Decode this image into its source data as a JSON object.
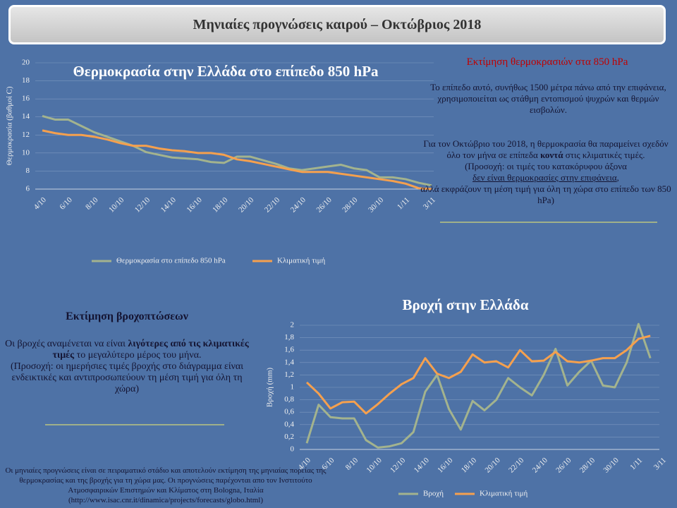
{
  "header": {
    "title": "Μηνιαίες προγνώσεις καιρού – Οκτώβριος 2018"
  },
  "chart_data": [
    {
      "type": "line",
      "title": "Θερμοκρασία στην Ελλάδα στο επίπεδο 850 hPa",
      "y_label": "Θερμοκρασία  (βαθμοί  C)",
      "categories": [
        "4/10",
        null,
        "6/10",
        null,
        "8/10",
        null,
        "10/10",
        null,
        "12/10",
        null,
        "14/10",
        null,
        "16/10",
        null,
        "18/10",
        null,
        "20/10",
        null,
        "22/10",
        null,
        "24/10",
        null,
        "26/10",
        null,
        "28/10",
        null,
        "30/10",
        null,
        "1/11",
        null,
        "3/11"
      ],
      "series": [
        {
          "name": "Θερμοκρασία  στο επίπεδο 850 hPa",
          "color": "#a3b38e",
          "values": [
            14.1,
            13.7,
            13.7,
            13.0,
            12.3,
            11.8,
            11.3,
            10.8,
            10.1,
            9.8,
            9.5,
            9.4,
            9.3,
            9.0,
            8.9,
            9.6,
            9.6,
            9.2,
            8.8,
            8.3,
            8.1,
            8.3,
            8.5,
            8.7,
            8.3,
            8.1,
            7.3,
            7.3,
            7.1,
            6.7,
            6.4
          ]
        },
        {
          "name": "Κλιματική τιμή",
          "color": "#f5a04e",
          "values": [
            12.5,
            12.2,
            12.0,
            12.0,
            11.8,
            11.5,
            11.1,
            10.8,
            10.8,
            10.5,
            10.3,
            10.2,
            10.0,
            10.0,
            9.8,
            9.3,
            9.1,
            8.8,
            8.5,
            8.2,
            7.9,
            7.9,
            7.9,
            7.7,
            7.5,
            7.3,
            7.1,
            6.9,
            6.6,
            6.1,
            6.0
          ]
        }
      ],
      "ylim": [
        6,
        20
      ],
      "yticks": [
        6,
        8,
        10,
        12,
        14,
        16,
        18,
        20
      ],
      "grid": true,
      "legend": "bottom"
    },
    {
      "type": "line",
      "title": "Βροχή στην Ελλάδα",
      "y_label": "Βροχή  (mm)",
      "categories": [
        "4/10",
        null,
        "6/10",
        null,
        "8/10",
        null,
        "10/10",
        null,
        "12/10",
        null,
        "14/10",
        null,
        "16/10",
        null,
        "18/10",
        null,
        "20/10",
        null,
        "22/10",
        null,
        "24/10",
        null,
        "26/10",
        null,
        "28/10",
        null,
        "30/10",
        null,
        "1/11",
        null,
        "3/11"
      ],
      "series": [
        {
          "name": "Βροχή",
          "color": "#a3b38e",
          "values": [
            0.1,
            0.72,
            0.52,
            0.5,
            0.5,
            0.15,
            0.03,
            0.05,
            0.1,
            0.28,
            0.93,
            1.2,
            0.65,
            0.32,
            0.78,
            0.63,
            0.8,
            1.15,
            1.0,
            0.87,
            1.2,
            1.62,
            1.03,
            1.25,
            1.43,
            1.03,
            1.0,
            1.4,
            2.02,
            1.47,
            null
          ]
        },
        {
          "name": "Κλιματική  τιμή",
          "color": "#f5a04e",
          "values": [
            1.08,
            0.9,
            0.66,
            0.76,
            0.77,
            0.58,
            0.73,
            0.9,
            1.05,
            1.15,
            1.47,
            1.22,
            1.15,
            1.25,
            1.53,
            1.4,
            1.42,
            1.32,
            1.6,
            1.42,
            1.43,
            1.57,
            1.42,
            1.4,
            1.43,
            1.47,
            1.47,
            1.6,
            1.78,
            1.83,
            null
          ]
        }
      ],
      "ylim": [
        0,
        2
      ],
      "yticks": [
        0,
        {
          "value": 0.2,
          "label": "0,2"
        },
        {
          "value": 0.4,
          "label": "0,4"
        },
        {
          "value": 0.6,
          "label": "0,6"
        },
        {
          "value": 0.8,
          "label": "0,8"
        },
        1,
        {
          "value": 1.2,
          "label": "1,2"
        },
        {
          "value": 1.4,
          "label": "1,4"
        },
        {
          "value": 1.6,
          "label": "1,6"
        },
        {
          "value": 1.8,
          "label": "1,8"
        },
        2
      ],
      "grid": true,
      "legend": "bottom"
    }
  ],
  "temp_text": {
    "title": "Εκτίμηση θερμοκρασιών στα 850 hPa",
    "p1": "Το επίπεδο αυτό, συνήθως 1500 μέτρα πάνω από την επιφάνεια, χρησιμοποιείται ως στάθμη  εντοπισμού ψυχρών και θερμών εισβολών.",
    "p2": [
      "Για τον Οκτώβριο του 2018, η θερμοκρασία θα παραμείνει σχεδόν όλο τον μήνα σε επίπεδα ",
      "κοντά",
      " στις κλιματικές τιμές.",
      "(Προσοχή: οι τιμές του  κατακόρυφου άξονα",
      "δεν είναι θερμοκρασίες στην επιφάνεια",
      ",",
      "αλλά εκφράζουν τη μέση τιμή για όλη τη χώρα στο επίπεδο των 850 hPa)"
    ]
  },
  "rain_text": {
    "title": "Εκτίμηση βροχοπτώσεων",
    "p1": [
      "Οι βροχές αναμένεται να είναι ",
      "λιγότερες από τις κλιματικές τιμές",
      " το μεγαλύτερο μέρος του μήνα.",
      "(Προσοχή: οι ημερήσιες τιμές βροχής στο διάγραμμα είναι ενδεικτικές και αντιπροσωπεύουν τη μέση τιμή για όλη τη χώρα)"
    ]
  },
  "footer": "Οι μηνιαίες προγνώσεις  είναι σε πειραματικό στάδιο και αποτελούν  εκτίμηση της μηνιαίας πορείας της θερμοκρασίας  και της βροχής για τη χώρα μας. Οι προγνώσεις παρέχονται απο τον Ινστιτούτο Ατμοσφαιρικών  Επιστημών και Κλίματος στη Bologna, Ιταλία (http://www.isac.cnr.it/dinamica/projects/forecasts/globo.html)"
}
